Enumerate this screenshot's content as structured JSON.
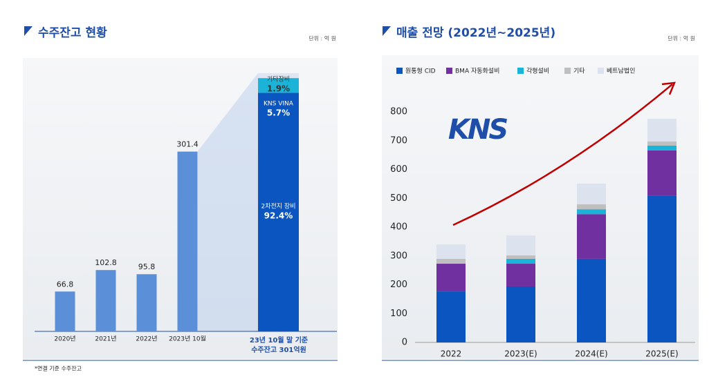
{
  "chart_data": [
    {
      "type": "bar",
      "title": "수주잔고 현황",
      "unit": "단위 : 억 원",
      "footnote": "*연결 기준 수주잔고",
      "categories": [
        "2020년",
        "2021년",
        "2022년",
        "2023년 10월"
      ],
      "values": [
        66.8,
        102.8,
        95.8,
        301.4
      ],
      "color": "#5b8fd8"
    },
    {
      "type": "share_column",
      "categories": [
        "2차전지 장비",
        "KNS VINA",
        "기타장비"
      ],
      "values": [
        92.4,
        5.7,
        1.9
      ],
      "value_labels": [
        "92.4%",
        "5.7%",
        "1.9%"
      ],
      "colors": [
        "#0a55c0",
        "#1bb4d8",
        "#dfe6f1"
      ],
      "caption": [
        "23년 10월 말 기준",
        "수주잔고 301억원"
      ]
    },
    {
      "type": "stacked_bar",
      "title": "매출 전망 (2022년~2025년)",
      "unit": "단위 : 억 원",
      "logo": "KNS",
      "categories": [
        "2022",
        "2023(E)",
        "2024(E)",
        "2025(E)"
      ],
      "series": [
        {
          "name": "원통형 CID",
          "color": "#0a55c0",
          "values": [
            177,
            194,
            290,
            508
          ]
        },
        {
          "name": "BMA 자동화설비",
          "color": "#7030a0",
          "values": [
            96,
            79,
            155,
            158
          ]
        },
        {
          "name": "각형설비",
          "color": "#1bb4d8",
          "values": [
            0,
            17,
            17,
            17
          ]
        },
        {
          "name": "기타",
          "color": "#bfbfbf",
          "values": [
            17,
            12,
            17,
            14
          ]
        },
        {
          "name": "베트남법인",
          "color": "#dde3ee",
          "values": [
            50,
            69,
            72,
            79
          ]
        }
      ],
      "ylim": [
        0,
        800
      ],
      "yticks": [
        0,
        100,
        200,
        300,
        400,
        500,
        600,
        700,
        800
      ]
    }
  ]
}
